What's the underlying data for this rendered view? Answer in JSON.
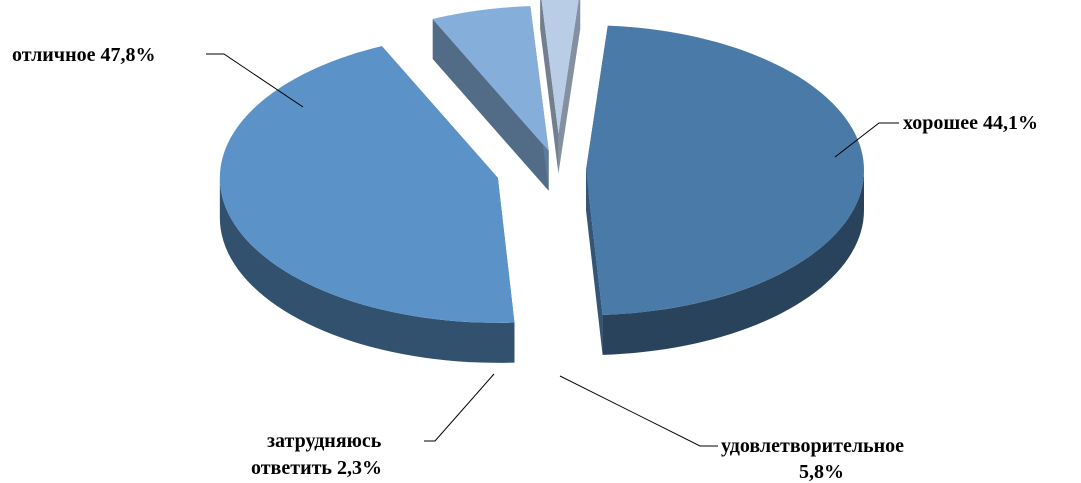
{
  "chart_data": {
    "type": "pie",
    "style": "3d-exploded",
    "slices": [
      {
        "category": "отличное",
        "value": 47.8,
        "label_lines": [
          "отличное 47,8%"
        ],
        "color": "#4A7AA7"
      },
      {
        "category": "хорошее",
        "value": 44.1,
        "label_lines": [
          "хорошее 44,1%"
        ],
        "color": "#5B93C8"
      },
      {
        "category": "удовлетворительное",
        "value": 5.8,
        "label_lines": [
          "удовлетворительное",
          "5,8%"
        ],
        "color": "#85AEDB"
      },
      {
        "category": "затрудняюсь ответить",
        "value": 2.3,
        "label_lines": [
          "затрудняюсь",
          "ответить 2,3%"
        ],
        "color": "#B9CDE6"
      }
    ]
  }
}
